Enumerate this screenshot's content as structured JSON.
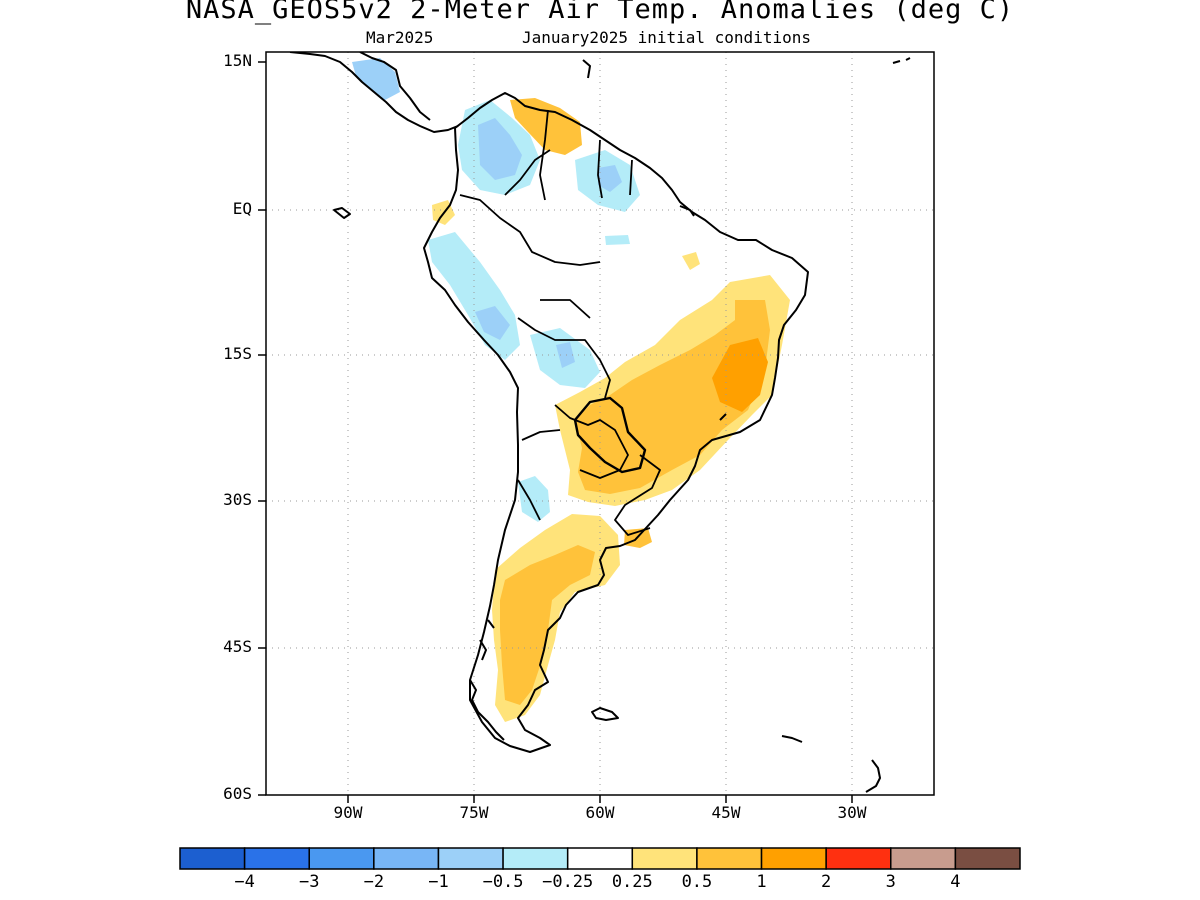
{
  "title": "NASA_GEOS5v2 2-Meter Air Temp. Anomalies (deg C)",
  "subtitle_left": "Mar2025",
  "subtitle_right": "January2025 initial conditions",
  "lat_labels": [
    "15N",
    "EQ",
    "15S",
    "30S",
    "45S",
    "60S"
  ],
  "lon_labels": [
    "90W",
    "75W",
    "60W",
    "45W",
    "30W"
  ],
  "colorbar": {
    "labels": [
      "−4",
      "−3",
      "−2",
      "−1",
      "−0.5",
      "−0.25",
      "0.25",
      "0.5",
      "1",
      "2",
      "3",
      "4"
    ],
    "colors": [
      "#1c5fd0",
      "#2a72e8",
      "#4a98f0",
      "#78b6f6",
      "#9cd0f8",
      "#b4ecf8",
      "#ffffff",
      "#ffe37a",
      "#ffc23a",
      "#ffa000",
      "#ff3010",
      "#c89c8e",
      "#7a4e42"
    ]
  },
  "anomaly_colors": {
    "warm_light": "#ffe37a",
    "warm_mid": "#ffc23a",
    "warm_strong": "#ffa000",
    "cool_light": "#b4ecf8",
    "cool_mid": "#9cd0f8",
    "cool_strong": "#78b6f6"
  }
}
